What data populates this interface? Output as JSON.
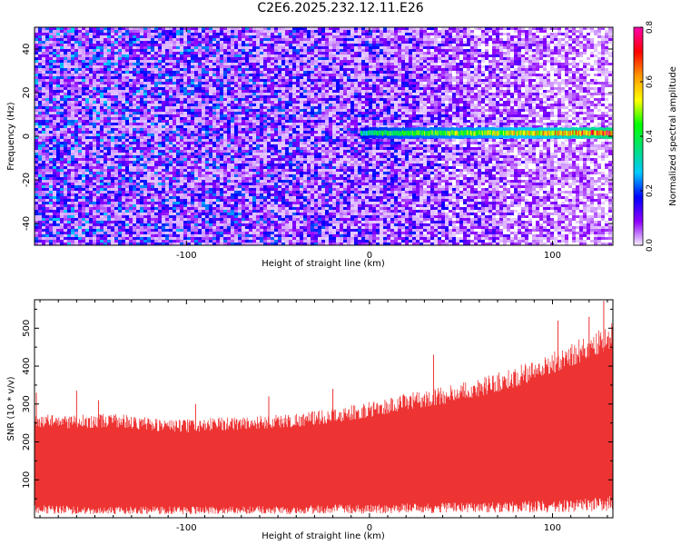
{
  "figure_title": "C2E6.2025.232.12.11.E26",
  "colors": {
    "signal": "#ee3333",
    "frame": "#000000"
  },
  "chart_data": [
    {
      "type": "heatmap",
      "title": "C2E6.2025.232.12.11.E26",
      "xlabel": "Height of straight line (km)",
      "ylabel": "Frequency (Hz)",
      "xlim": [
        -183,
        133
      ],
      "ylim": [
        -50,
        50
      ],
      "xticks": [
        -100,
        0,
        100
      ],
      "xtick_labels": [
        "-100",
        "0",
        "100"
      ],
      "yticks": [
        -40,
        -20,
        0,
        20,
        40
      ],
      "ytick_labels": [
        "-40",
        "-20",
        "0",
        "20",
        "40"
      ],
      "colorbar": {
        "label": "Normalized spectral amplitude",
        "range": [
          0,
          0.8
        ],
        "ticks": [
          0.0,
          0.2,
          0.4,
          0.6,
          0.8
        ],
        "tick_labels": [
          "0.0",
          "0.2",
          "0.4",
          "0.6",
          "0.8"
        ],
        "colormap": [
          "#f7f2ff",
          "#8f00ff",
          "#0000ff",
          "#00c8ff",
          "#00e07a",
          "#00ff00",
          "#ffff00",
          "#ff9900",
          "#ff0000",
          "#ff00aa"
        ]
      },
      "noise_level": {
        "x": [
          -183,
          -100,
          0,
          50,
          95,
          133
        ],
        "amplitude": [
          0.12,
          0.11,
          0.09,
          0.07,
          0.05,
          0.04
        ]
      },
      "signal_band": {
        "x_start": -5,
        "x_end": 133,
        "frequency_center": 1.5,
        "frequency_halfwidth": 2.5,
        "amplitude_x": [
          -5,
          0,
          20,
          60,
          90,
          133
        ],
        "amplitude": [
          0.3,
          0.35,
          0.4,
          0.45,
          0.5,
          0.65
        ]
      }
    },
    {
      "type": "area",
      "title": "",
      "xlabel": "Height of straight line (km)",
      "ylabel": "SNR (10 * v/v)",
      "xlim": [
        -183,
        133
      ],
      "ylim": [
        0,
        575
      ],
      "xticks": [
        -100,
        0,
        100
      ],
      "xtick_labels": [
        "-100",
        "0",
        "100"
      ],
      "yticks": [
        100,
        200,
        300,
        400,
        500
      ],
      "ytick_labels": [
        "100",
        "200",
        "300",
        "400",
        "500"
      ],
      "series": [
        {
          "name": "SNR",
          "x": [
            -183,
            -160,
            -140,
            -120,
            -100,
            -80,
            -60,
            -40,
            -20,
            0,
            20,
            40,
            60,
            80,
            100,
            115,
            133
          ],
          "upper": [
            240,
            235,
            240,
            230,
            225,
            230,
            235,
            240,
            250,
            265,
            285,
            300,
            320,
            345,
            380,
            410,
            450
          ],
          "lower": [
            35,
            30,
            30,
            30,
            30,
            30,
            32,
            32,
            35,
            35,
            38,
            40,
            40,
            45,
            45,
            50,
            60
          ],
          "peaks": [
            {
              "x": -182,
              "y": 330
            },
            {
              "x": -160,
              "y": 335
            },
            {
              "x": -148,
              "y": 310
            },
            {
              "x": -95,
              "y": 300
            },
            {
              "x": -55,
              "y": 320
            },
            {
              "x": -20,
              "y": 340
            },
            {
              "x": 35,
              "y": 430
            },
            {
              "x": 70,
              "y": 375
            },
            {
              "x": 103,
              "y": 520
            },
            {
              "x": 120,
              "y": 530
            },
            {
              "x": 128,
              "y": 572
            }
          ]
        }
      ]
    }
  ]
}
